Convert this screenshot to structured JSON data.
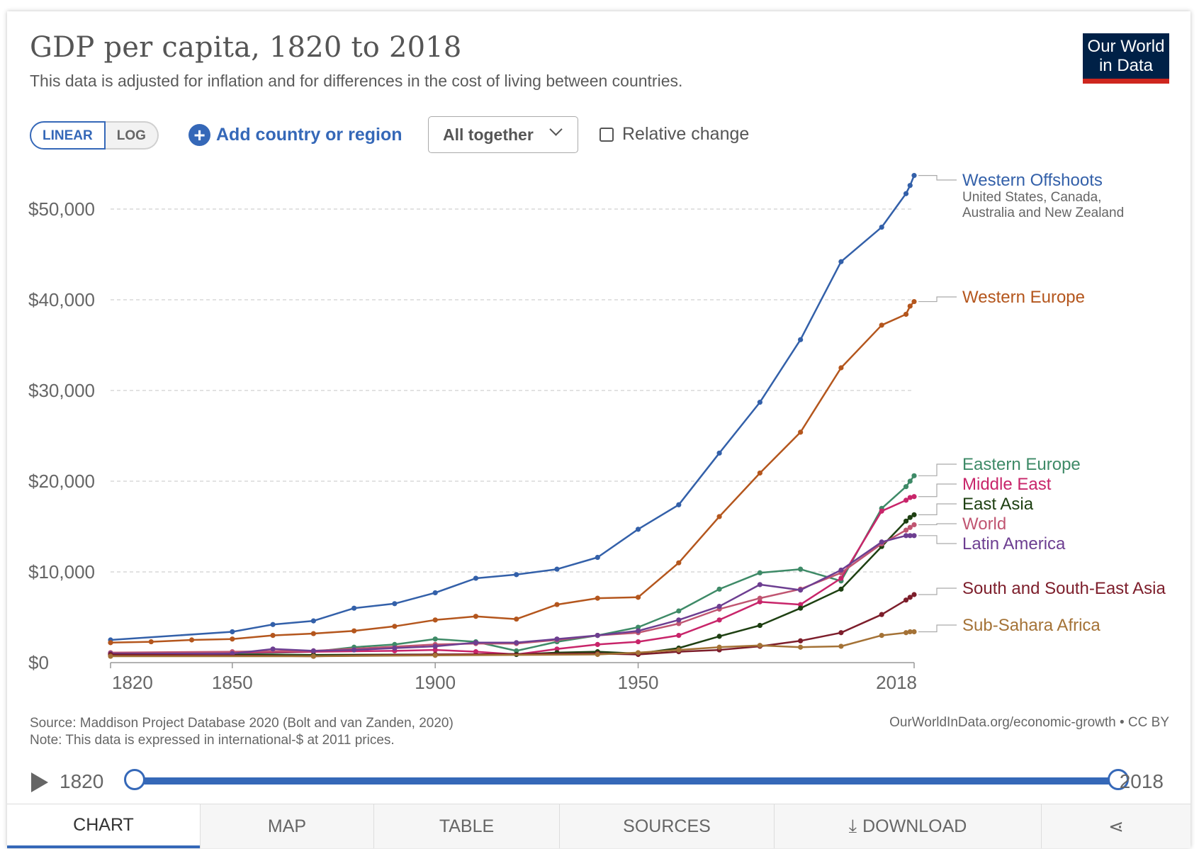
{
  "header": {
    "title": "GDP per capita, 1820 to 2018",
    "subtitle": "This data is adjusted for inflation and for differences in the cost of living between countries.",
    "logo_line1": "Our World",
    "logo_line2": "in Data"
  },
  "controls": {
    "linear_label": "LINEAR",
    "log_label": "LOG",
    "add_label": "Add country or region",
    "dropdown_value": "All together",
    "relative_label": "Relative change"
  },
  "footer": {
    "source": "Source: Maddison Project Database 2020 (Bolt and van Zanden, 2020)",
    "note": "Note: This data is expressed in international-$ at 2011 prices.",
    "credit": "OurWorldInData.org/economic-growth • CC BY"
  },
  "timeline": {
    "start": "1820",
    "end": "2018"
  },
  "tabs": {
    "chart": "CHART",
    "map": "MAP",
    "table": "TABLE",
    "sources": "SOURCES",
    "download": "DOWNLOAD"
  },
  "chart_data": {
    "type": "line",
    "title": "GDP per capita, 1820 to 2018",
    "xlabel": "",
    "ylabel": "",
    "scale": "linear",
    "xlim": [
      1820,
      2018
    ],
    "ylim": [
      0,
      55000
    ],
    "x_ticks": [
      1820,
      1850,
      1900,
      1950,
      2018
    ],
    "x_tick_labels": [
      "1820",
      "1850",
      "1900",
      "1950",
      "2018"
    ],
    "y_ticks": [
      0,
      10000,
      20000,
      30000,
      40000,
      50000
    ],
    "y_tick_labels": [
      "$0",
      "$10,000",
      "$20,000",
      "$30,000",
      "$40,000",
      "$50,000"
    ],
    "grid": "horizontal dashed",
    "legend": "right, line labels",
    "series": [
      {
        "name": "Western Offshoots",
        "sublabel_1": "United States, Canada,",
        "sublabel_2": "Australia and New Zealand",
        "color": "#3360a9",
        "points": [
          [
            1820,
            2500
          ],
          [
            1850,
            3400
          ],
          [
            1860,
            4200
          ],
          [
            1870,
            4600
          ],
          [
            1880,
            6000
          ],
          [
            1890,
            6500
          ],
          [
            1900,
            7700
          ],
          [
            1910,
            9300
          ],
          [
            1920,
            9700
          ],
          [
            1930,
            10300
          ],
          [
            1940,
            11600
          ],
          [
            1950,
            14700
          ],
          [
            1960,
            17400
          ],
          [
            1970,
            23100
          ],
          [
            1980,
            28700
          ],
          [
            1990,
            35600
          ],
          [
            2000,
            44200
          ],
          [
            2010,
            48000
          ],
          [
            2016,
            51700
          ],
          [
            2017,
            52600
          ],
          [
            2018,
            53700
          ]
        ]
      },
      {
        "name": "Western Europe",
        "color": "#b4561d",
        "points": [
          [
            1820,
            2200
          ],
          [
            1830,
            2300
          ],
          [
            1840,
            2500
          ],
          [
            1850,
            2600
          ],
          [
            1860,
            3000
          ],
          [
            1870,
            3200
          ],
          [
            1880,
            3500
          ],
          [
            1890,
            4000
          ],
          [
            1900,
            4700
          ],
          [
            1910,
            5100
          ],
          [
            1920,
            4800
          ],
          [
            1930,
            6400
          ],
          [
            1940,
            7100
          ],
          [
            1950,
            7200
          ],
          [
            1960,
            11000
          ],
          [
            1970,
            16100
          ],
          [
            1980,
            20900
          ],
          [
            1990,
            25400
          ],
          [
            2000,
            32500
          ],
          [
            2010,
            37200
          ],
          [
            2016,
            38400
          ],
          [
            2017,
            39300
          ],
          [
            2018,
            39800
          ]
        ]
      },
      {
        "name": "Eastern Europe",
        "color": "#3e8a67",
        "points": [
          [
            1820,
            800
          ],
          [
            1850,
            950
          ],
          [
            1870,
            1200
          ],
          [
            1880,
            1700
          ],
          [
            1890,
            2000
          ],
          [
            1900,
            2600
          ],
          [
            1910,
            2300
          ],
          [
            1920,
            1300
          ],
          [
            1930,
            2300
          ],
          [
            1940,
            3000
          ],
          [
            1950,
            3900
          ],
          [
            1960,
            5700
          ],
          [
            1970,
            8100
          ],
          [
            1980,
            9900
          ],
          [
            1990,
            10300
          ],
          [
            2000,
            9000
          ],
          [
            2010,
            17000
          ],
          [
            2016,
            19400
          ],
          [
            2017,
            20000
          ],
          [
            2018,
            20600
          ]
        ]
      },
      {
        "name": "Middle East",
        "color": "#c8256a",
        "points": [
          [
            1820,
            1000
          ],
          [
            1850,
            1100
          ],
          [
            1870,
            1200
          ],
          [
            1890,
            1300
          ],
          [
            1900,
            1400
          ],
          [
            1910,
            1200
          ],
          [
            1920,
            900
          ],
          [
            1930,
            1500
          ],
          [
            1940,
            2000
          ],
          [
            1950,
            2300
          ],
          [
            1960,
            3000
          ],
          [
            1970,
            4700
          ],
          [
            1980,
            6700
          ],
          [
            1990,
            6400
          ],
          [
            2000,
            9300
          ],
          [
            2010,
            16700
          ],
          [
            2016,
            17900
          ],
          [
            2017,
            18200
          ],
          [
            2018,
            18300
          ]
        ]
      },
      {
        "name": "East Asia",
        "color": "#1e4012",
        "points": [
          [
            1820,
            900
          ],
          [
            1870,
            850
          ],
          [
            1900,
            900
          ],
          [
            1920,
            900
          ],
          [
            1930,
            1100
          ],
          [
            1940,
            1200
          ],
          [
            1950,
            1000
          ],
          [
            1960,
            1600
          ],
          [
            1970,
            2900
          ],
          [
            1980,
            4100
          ],
          [
            1990,
            6000
          ],
          [
            2000,
            8100
          ],
          [
            2010,
            12800
          ],
          [
            2016,
            15600
          ],
          [
            2017,
            16000
          ],
          [
            2018,
            16300
          ]
        ]
      },
      {
        "name": "World",
        "color": "#c05571",
        "points": [
          [
            1820,
            1100
          ],
          [
            1850,
            1200
          ],
          [
            1870,
            1300
          ],
          [
            1900,
            2000
          ],
          [
            1910,
            2100
          ],
          [
            1920,
            2100
          ],
          [
            1930,
            2500
          ],
          [
            1940,
            3000
          ],
          [
            1950,
            3300
          ],
          [
            1960,
            4300
          ],
          [
            1970,
            5900
          ],
          [
            1980,
            7100
          ],
          [
            1990,
            8100
          ],
          [
            2000,
            9900
          ],
          [
            2010,
            13100
          ],
          [
            2016,
            14600
          ],
          [
            2017,
            14900
          ],
          [
            2018,
            15200
          ]
        ]
      },
      {
        "name": "Latin America",
        "color": "#6d3e91",
        "points": [
          [
            1820,
            1000
          ],
          [
            1850,
            1000
          ],
          [
            1860,
            1500
          ],
          [
            1870,
            1300
          ],
          [
            1880,
            1400
          ],
          [
            1890,
            1600
          ],
          [
            1900,
            1800
          ],
          [
            1910,
            2200
          ],
          [
            1920,
            2200
          ],
          [
            1930,
            2600
          ],
          [
            1940,
            3000
          ],
          [
            1950,
            3500
          ],
          [
            1960,
            4700
          ],
          [
            1970,
            6200
          ],
          [
            1980,
            8600
          ],
          [
            1990,
            8000
          ],
          [
            2000,
            10200
          ],
          [
            2010,
            13300
          ],
          [
            2016,
            14000
          ],
          [
            2017,
            14000
          ],
          [
            2018,
            14000
          ]
        ]
      },
      {
        "name": "South and South-East Asia",
        "color": "#7d1e2b",
        "points": [
          [
            1820,
            900
          ],
          [
            1870,
            700
          ],
          [
            1900,
            900
          ],
          [
            1940,
            1000
          ],
          [
            1950,
            900
          ],
          [
            1960,
            1200
          ],
          [
            1970,
            1400
          ],
          [
            1980,
            1800
          ],
          [
            1990,
            2400
          ],
          [
            2000,
            3300
          ],
          [
            2010,
            5300
          ],
          [
            2016,
            6900
          ],
          [
            2017,
            7200
          ],
          [
            2018,
            7500
          ]
        ]
      },
      {
        "name": "Sub-Sahara Africa",
        "color": "#a47236",
        "points": [
          [
            1820,
            700
          ],
          [
            1870,
            700
          ],
          [
            1900,
            800
          ],
          [
            1940,
            900
          ],
          [
            1950,
            1100
          ],
          [
            1960,
            1400
          ],
          [
            1970,
            1700
          ],
          [
            1980,
            1900
          ],
          [
            1990,
            1700
          ],
          [
            2000,
            1800
          ],
          [
            2010,
            3000
          ],
          [
            2016,
            3300
          ],
          [
            2017,
            3400
          ],
          [
            2018,
            3400
          ]
        ]
      }
    ]
  }
}
